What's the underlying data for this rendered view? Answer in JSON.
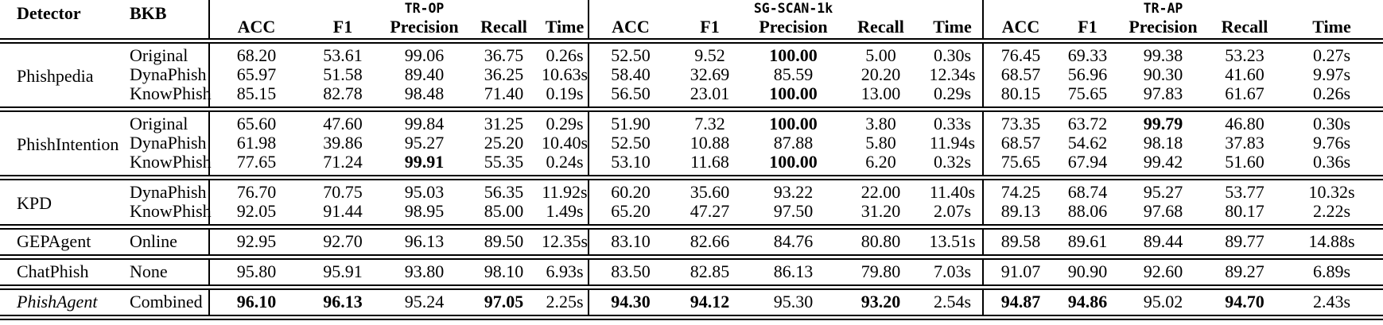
{
  "table": {
    "headers": {
      "detector": "Detector",
      "bkb": "BKB"
    },
    "metrics": [
      "ACC",
      "F1",
      "Precision",
      "Recall",
      "Time"
    ],
    "datasets": [
      "TR-OP",
      "SG-SCAN-1k",
      "TR-AP"
    ],
    "blocks": [
      {
        "detector": "Phishpedia",
        "italic": false,
        "rows": [
          {
            "bkb": "Original",
            "values": [
              "68.20",
              "53.61",
              "99.06",
              "36.75",
              "0.26s",
              "52.50",
              "9.52",
              "100.00",
              "5.00",
              "0.30s",
              "76.45",
              "69.33",
              "99.38",
              "53.23",
              "0.27s"
            ],
            "bold": [
              7
            ]
          },
          {
            "bkb": "DynaPhish",
            "values": [
              "65.97",
              "51.58",
              "89.40",
              "36.25",
              "10.63s",
              "58.40",
              "32.69",
              "85.59",
              "20.20",
              "12.34s",
              "68.57",
              "56.96",
              "90.30",
              "41.60",
              "9.97s"
            ],
            "bold": []
          },
          {
            "bkb": "KnowPhish",
            "values": [
              "85.15",
              "82.78",
              "98.48",
              "71.40",
              "0.19s",
              "56.50",
              "23.01",
              "100.00",
              "13.00",
              "0.29s",
              "80.15",
              "75.65",
              "97.83",
              "61.67",
              "0.26s"
            ],
            "bold": [
              7
            ]
          }
        ]
      },
      {
        "detector": "PhishIntention",
        "italic": false,
        "rows": [
          {
            "bkb": "Original",
            "values": [
              "65.60",
              "47.60",
              "99.84",
              "31.25",
              "0.29s",
              "51.90",
              "7.32",
              "100.00",
              "3.80",
              "0.33s",
              "73.35",
              "63.72",
              "99.79",
              "46.80",
              "0.30s"
            ],
            "bold": [
              7,
              12
            ]
          },
          {
            "bkb": "DynaPhish",
            "values": [
              "61.98",
              "39.86",
              "95.27",
              "25.20",
              "10.40s",
              "52.50",
              "10.88",
              "87.88",
              "5.80",
              "11.94s",
              "68.57",
              "54.62",
              "98.18",
              "37.83",
              "9.76s"
            ],
            "bold": []
          },
          {
            "bkb": "KnowPhish",
            "values": [
              "77.65",
              "71.24",
              "99.91",
              "55.35",
              "0.24s",
              "53.10",
              "11.68",
              "100.00",
              "6.20",
              "0.32s",
              "75.65",
              "67.94",
              "99.42",
              "51.60",
              "0.36s"
            ],
            "bold": [
              2,
              7
            ]
          }
        ]
      },
      {
        "detector": "KPD",
        "italic": false,
        "rows": [
          {
            "bkb": "DynaPhish",
            "values": [
              "76.70",
              "70.75",
              "95.03",
              "56.35",
              "11.92s",
              "60.20",
              "35.60",
              "93.22",
              "22.00",
              "11.40s",
              "74.25",
              "68.74",
              "95.27",
              "53.77",
              "10.32s"
            ],
            "bold": []
          },
          {
            "bkb": "KnowPhish",
            "values": [
              "92.05",
              "91.44",
              "98.95",
              "85.00",
              "1.49s",
              "65.20",
              "47.27",
              "97.50",
              "31.20",
              "2.07s",
              "89.13",
              "88.06",
              "97.68",
              "80.17",
              "2.22s"
            ],
            "bold": []
          }
        ]
      },
      {
        "detector": "GEPAgent",
        "italic": false,
        "rows": [
          {
            "bkb": "Online",
            "values": [
              "92.95",
              "92.70",
              "96.13",
              "89.50",
              "12.35s",
              "83.10",
              "82.66",
              "84.76",
              "80.80",
              "13.51s",
              "89.58",
              "89.61",
              "89.44",
              "89.77",
              "14.88s"
            ],
            "bold": []
          }
        ]
      },
      {
        "detector": "ChatPhish",
        "italic": false,
        "rows": [
          {
            "bkb": "None",
            "values": [
              "95.80",
              "95.91",
              "93.80",
              "98.10",
              "6.93s",
              "83.50",
              "82.85",
              "86.13",
              "79.80",
              "7.03s",
              "91.07",
              "90.90",
              "92.60",
              "89.27",
              "6.89s"
            ],
            "bold": []
          }
        ]
      },
      {
        "detector": "PhishAgent",
        "italic": true,
        "rows": [
          {
            "bkb": "Combined",
            "values": [
              "96.10",
              "96.13",
              "95.24",
              "97.05",
              "2.25s",
              "94.30",
              "94.12",
              "95.30",
              "93.20",
              "2.54s",
              "94.87",
              "94.86",
              "95.02",
              "94.70",
              "2.43s"
            ],
            "bold": [
              0,
              1,
              3,
              5,
              6,
              8,
              10,
              11,
              13
            ]
          }
        ]
      }
    ]
  }
}
